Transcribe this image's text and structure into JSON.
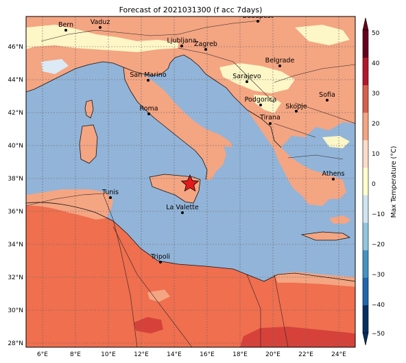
{
  "title": "Forecast of 2021031300 (f acc 7days)",
  "lat_ticks": [
    "46°N",
    "44°N",
    "42°N",
    "40°N",
    "38°N",
    "36°N",
    "34°N",
    "32°N",
    "30°N",
    "28°N"
  ],
  "lon_ticks": [
    "6°E",
    "8°E",
    "10°E",
    "12°E",
    "14°E",
    "16°E",
    "18°E",
    "20°E",
    "22°E",
    "24°E"
  ],
  "cities": [
    {
      "name": "Bern"
    },
    {
      "name": "Vaduz"
    },
    {
      "name": "Budapest"
    },
    {
      "name": "Ljubljana"
    },
    {
      "name": "Zagreb"
    },
    {
      "name": "San Marino"
    },
    {
      "name": "Belgrade"
    },
    {
      "name": "Sarajevo"
    },
    {
      "name": "Sofia"
    },
    {
      "name": "Roma"
    },
    {
      "name": "Podgorica"
    },
    {
      "name": "Skopje"
    },
    {
      "name": "Tirana"
    },
    {
      "name": "Athens"
    },
    {
      "name": "Tunis"
    },
    {
      "name": "La Valette"
    },
    {
      "name": "Tripoli"
    }
  ],
  "marker": {
    "type": "star",
    "color": "#e41a1c"
  },
  "colorbar": {
    "label": "Max Temperature (°C)",
    "ticks": [
      "50",
      "40",
      "30",
      "20",
      "10",
      "0",
      "−10",
      "−20",
      "−30",
      "−40",
      "−50"
    ],
    "colors": [
      "#67001f",
      "#b2182b",
      "#d6604d",
      "#f4a582",
      "#fddbc7",
      "#ffffcc",
      "#d1e5f0",
      "#92c5de",
      "#4393c3",
      "#2166ac",
      "#053061"
    ]
  },
  "map_colors": {
    "sea": "#92b4d8",
    "warm": "#f4a582",
    "hot": "#ef6f4f",
    "hotter": "#d6423a",
    "pale": "#fdf6c6",
    "paleblue": "#dbeaf5"
  }
}
